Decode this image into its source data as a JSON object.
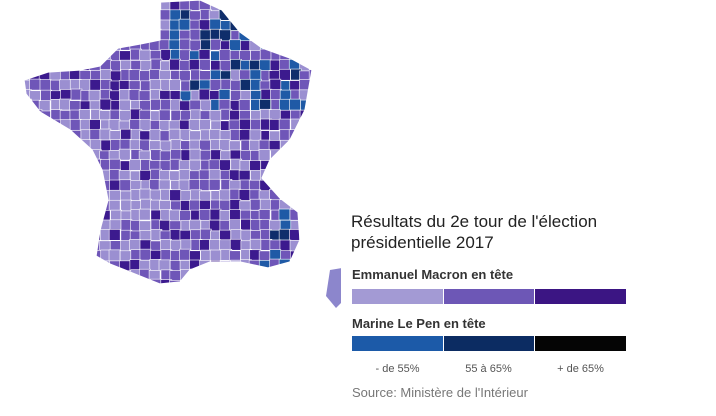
{
  "map": {
    "region": "France",
    "winner_colors": {
      "macron": [
        "#9b8fd1",
        "#6f56b8",
        "#3c1a8e"
      ],
      "lepen": [
        "#1f5aa6",
        "#0f2e6b",
        "#0a0a0a"
      ]
    }
  },
  "legend": {
    "title": "Résultats du 2e tour de l'élection présidentielle 2017",
    "macron_label": "Emmanuel Macron en tête",
    "macron_colors": [
      "#a39ad4",
      "#6d57b6",
      "#3b1583"
    ],
    "lepen_label": "Marine Le Pen en tête",
    "lepen_colors": [
      "#1c5aa8",
      "#0c2c62",
      "#050505"
    ],
    "ticks": [
      "- de 55%",
      "55 à 65%",
      "+ de 65%"
    ],
    "source": "Source: Ministère de l'Intérieur"
  }
}
